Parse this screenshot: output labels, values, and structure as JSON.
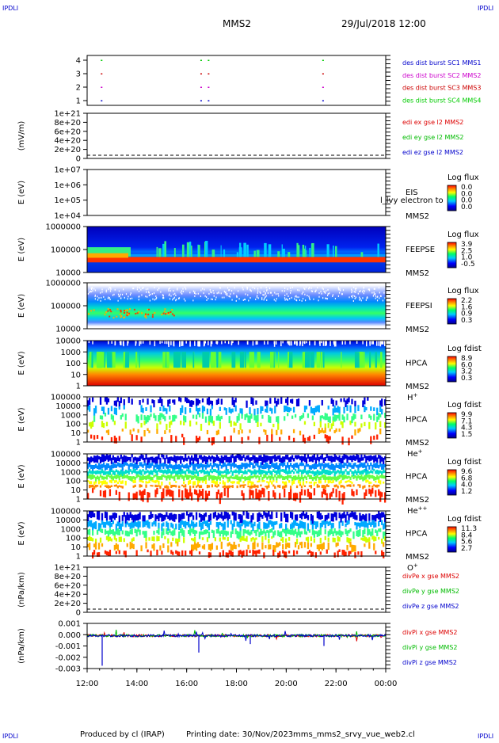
{
  "header": {
    "corner": "IPDLI",
    "mission": "MMS2",
    "date": "29/Jul/2018 12:00"
  },
  "footer": {
    "produced_by": "Produced by cl (IRAP)",
    "printing_date": "Printing date: 30/Nov/2023",
    "script": "mms_mms2_srvy_vue_web2.cl"
  },
  "colors": {
    "mms1": "#0000cc",
    "mms2": "#cc00cc",
    "mms3": "#cc0000",
    "mms4": "#00cc00",
    "x": "#dd0000",
    "y": "#00bb00",
    "z": "#0000cc"
  },
  "chart_data": {
    "type": "heatmap",
    "x_range": [
      "12:00",
      "00:00"
    ],
    "x_ticks": [
      "12:00",
      "14:00",
      "16:00",
      "18:00",
      "20:00",
      "22:00",
      "00:00"
    ],
    "panels": [
      {
        "id": "burst",
        "type": "scatter",
        "y_ticks": [
          "4",
          "3",
          "2",
          "1"
        ],
        "legend": [
          {
            "label": "des dist burst SC1 MMS1",
            "color": "#0000cc"
          },
          {
            "label": "des dist burst SC2 MMS2",
            "color": "#cc00cc"
          },
          {
            "label": "des dist burst SC3 MMS3",
            "color": "#cc0000"
          },
          {
            "label": "des dist burst SC4 MMS4",
            "color": "#00cc00"
          }
        ],
        "burst_times_hours": [
          12.55,
          16.55,
          16.85,
          21.45
        ]
      },
      {
        "id": "edi",
        "type": "line",
        "ylabel": "(mV/m)",
        "y_ticks": [
          "1e+21",
          "8e+20",
          "6e+20",
          "4e+20",
          "2e+20",
          "0"
        ],
        "legend": [
          {
            "label": "edi ex gse l2 MMS2",
            "color": "#dd0000"
          },
          {
            "label": "edi ey gse l2 MMS2",
            "color": "#00bb00"
          },
          {
            "label": "edi ez gse l2 MMS2",
            "color": "#0000cc"
          }
        ]
      },
      {
        "id": "eis",
        "type": "heatmap",
        "ylabel": "E (eV)",
        "y_ticks": [
          "1e+07",
          "1e+06",
          "1e+05",
          "1e+04"
        ],
        "instrument": "EIS",
        "overlap_text": "l_lvy electron to",
        "spacecraft": "MMS2",
        "cbar_title": "Log flux",
        "cbar_ticks": [
          "0.0",
          "0.0",
          "0.0",
          "0.0"
        ]
      },
      {
        "id": "feepse",
        "type": "heatmap",
        "ylabel": "E (eV)",
        "y_ticks": [
          "1000000",
          "100000",
          "10000"
        ],
        "instrument": "FEEPSE",
        "spacecraft": "MMS2",
        "cbar_title": "Log flux",
        "cbar_ticks": [
          "3.9",
          "2.5",
          "1.0",
          "-0.5"
        ]
      },
      {
        "id": "feepsi",
        "type": "heatmap",
        "ylabel": "E (eV)",
        "y_ticks": [
          "1000000",
          "100000",
          "10000"
        ],
        "instrument": "FEEPSI",
        "spacecraft": "MMS2",
        "cbar_title": "Log flux",
        "cbar_ticks": [
          "2.2",
          "1.6",
          "0.9",
          "0.3"
        ]
      },
      {
        "id": "hpca_h",
        "type": "heatmap",
        "ylabel": "E (eV)",
        "y_ticks": [
          "10000",
          "1000",
          "100",
          "10",
          "1"
        ],
        "instrument": "HPCA",
        "spacecraft": "MMS2",
        "species": "H",
        "charge": "+",
        "cbar_title": "Log fdist",
        "cbar_ticks": [
          "8.9",
          "6.0",
          "3.2",
          "0.3"
        ]
      },
      {
        "id": "hpca_he1",
        "type": "heatmap",
        "ylabel": "E (eV)",
        "y_ticks": [
          "100000",
          "10000",
          "1000",
          "100",
          "10",
          "1"
        ],
        "instrument": "HPCA",
        "spacecraft": "MMS2",
        "species": "He",
        "charge": "+",
        "cbar_title": "Log fdist",
        "cbar_ticks": [
          "9.9",
          "7.1",
          "4.3",
          "1.5"
        ]
      },
      {
        "id": "hpca_he2",
        "type": "heatmap",
        "ylabel": "E (eV)",
        "y_ticks": [
          "100000",
          "10000",
          "1000",
          "100",
          "10",
          "1"
        ],
        "instrument": "HPCA",
        "spacecraft": "MMS2",
        "species": "He",
        "charge": "++",
        "cbar_title": "Log fdist",
        "cbar_ticks": [
          "9.6",
          "6.8",
          "4.0",
          "1.2"
        ]
      },
      {
        "id": "hpca_o",
        "type": "heatmap",
        "ylabel": "E (eV)",
        "y_ticks": [
          "100000",
          "10000",
          "1000",
          "100",
          "10",
          "1"
        ],
        "instrument": "HPCA",
        "spacecraft": "MMS2",
        "species": "O",
        "charge": "+",
        "cbar_title": "Log fdist",
        "cbar_ticks": [
          "11.3",
          "8.4",
          "5.6",
          "2.7"
        ]
      },
      {
        "id": "divpe",
        "type": "line",
        "ylabel": "(nPa/km)",
        "y_ticks": [
          "1e+21",
          "8e+20",
          "6e+20",
          "4e+20",
          "2e+20",
          "0"
        ],
        "legend": [
          {
            "label": "divPe x gse MMS2",
            "color": "#dd0000"
          },
          {
            "label": "divPe y gse MMS2",
            "color": "#00bb00"
          },
          {
            "label": "divPe z gse MMS2",
            "color": "#0000cc"
          }
        ]
      },
      {
        "id": "divpi",
        "type": "line",
        "ylabel": "(nPa/km)",
        "y_ticks": [
          "0.001",
          "0.000",
          "-0.001",
          "-0.002",
          "-0.003"
        ],
        "y_range": [
          -0.0035,
          0.0013
        ],
        "legend": [
          {
            "label": "divPi x gse MMS2",
            "color": "#dd0000"
          },
          {
            "label": "divPi y gse MMS2",
            "color": "#00bb00"
          },
          {
            "label": "divPi z gse MMS2",
            "color": "#0000cc"
          }
        ]
      }
    ]
  }
}
